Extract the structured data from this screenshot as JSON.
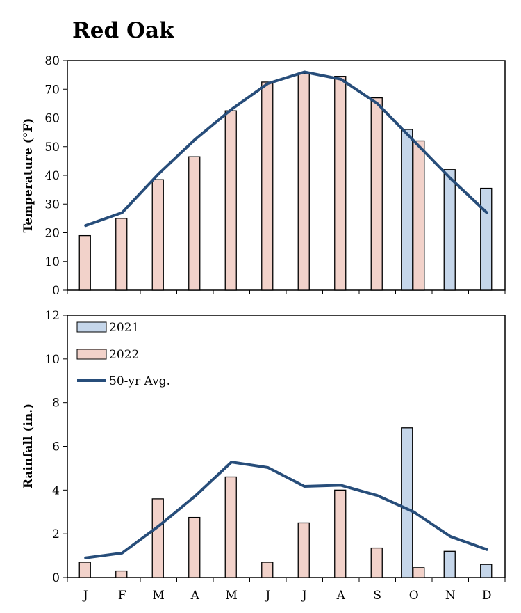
{
  "title": "Red Oak",
  "colors": {
    "y2021": "#c5d6ea",
    "y2022": "#f2d2ca",
    "avg": "#274d7a",
    "edge": "#000000"
  },
  "legend": {
    "y2021": "2021",
    "y2022": "2022",
    "avg": "50-yr Avg."
  },
  "months": [
    "J",
    "F",
    "M",
    "A",
    "M",
    "J",
    "J",
    "A",
    "S",
    "O",
    "N",
    "D"
  ],
  "chart_data": [
    {
      "type": "bar",
      "ylabel": "Temperature (°F)",
      "xlabel": "",
      "ylim": [
        0,
        80
      ],
      "yticks": [
        0,
        10,
        20,
        30,
        40,
        50,
        60,
        70,
        80
      ],
      "categories": [
        "J",
        "F",
        "M",
        "A",
        "M",
        "J",
        "J",
        "A",
        "S",
        "O",
        "N",
        "D"
      ],
      "series": [
        {
          "name": "2021",
          "type": "bar",
          "values": [
            null,
            null,
            null,
            null,
            null,
            null,
            null,
            null,
            null,
            56,
            42,
            35.5
          ]
        },
        {
          "name": "2022",
          "type": "bar",
          "values": [
            19,
            25,
            38.5,
            46.5,
            62.5,
            72.5,
            75.5,
            74.5,
            67,
            52,
            null,
            null
          ]
        },
        {
          "name": "50-yr Avg.",
          "type": "line",
          "values": [
            22.5,
            27,
            40.5,
            52.5,
            63,
            72,
            76,
            73.5,
            65,
            52,
            39,
            27
          ]
        }
      ],
      "grid": false
    },
    {
      "type": "bar",
      "ylabel": "Rainfall (in.)",
      "xlabel": "",
      "ylim": [
        0,
        12
      ],
      "yticks": [
        0,
        2,
        4,
        6,
        8,
        10,
        12
      ],
      "categories": [
        "J",
        "F",
        "M",
        "A",
        "M",
        "J",
        "J",
        "A",
        "S",
        "O",
        "N",
        "D"
      ],
      "series": [
        {
          "name": "2021",
          "type": "bar",
          "values": [
            null,
            null,
            null,
            null,
            null,
            null,
            null,
            null,
            null,
            6.85,
            1.2,
            0.6
          ]
        },
        {
          "name": "2022",
          "type": "bar",
          "values": [
            0.7,
            0.3,
            3.6,
            2.75,
            4.6,
            0.7,
            2.5,
            4.0,
            1.35,
            0.45,
            null,
            null
          ]
        },
        {
          "name": "50-yr Avg.",
          "type": "line",
          "values": [
            0.9,
            1.12,
            2.35,
            3.72,
            5.28,
            5.03,
            4.17,
            4.22,
            3.75,
            3.0,
            1.88,
            1.28
          ]
        }
      ],
      "legend_position": "top-left",
      "grid": false
    }
  ]
}
